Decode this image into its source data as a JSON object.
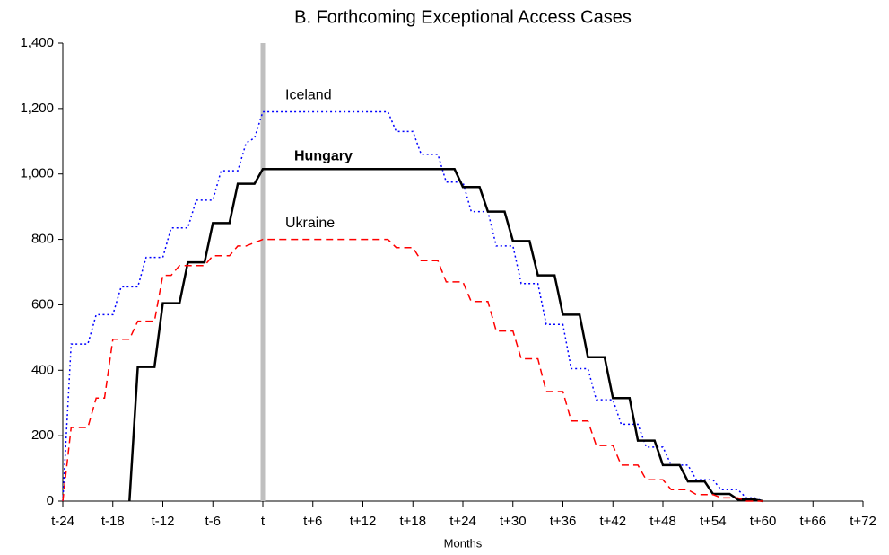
{
  "chart_data": {
    "type": "line",
    "title": "B. Forthcoming Exceptional Access Cases",
    "x_label": "Months",
    "x": [
      -24,
      -23,
      -22,
      -21,
      -20,
      -19,
      -18,
      -17,
      -16,
      -15,
      -14,
      -13,
      -12,
      -11,
      -10,
      -9,
      -8,
      -7,
      -6,
      -5,
      -4,
      -3,
      -2,
      -1,
      0,
      1,
      2,
      3,
      4,
      5,
      6,
      7,
      8,
      9,
      10,
      11,
      12,
      13,
      14,
      15,
      16,
      17,
      18,
      19,
      20,
      21,
      22,
      23,
      24,
      25,
      26,
      27,
      28,
      29,
      30,
      31,
      32,
      33,
      34,
      35,
      36,
      37,
      38,
      39,
      40,
      41,
      42,
      43,
      44,
      45,
      46,
      47,
      48,
      49,
      50,
      51,
      52,
      53,
      54,
      55,
      56,
      57,
      58,
      59,
      60
    ],
    "series": [
      {
        "name": "Iceland",
        "color": "#0000ff",
        "dash": "2,3",
        "width": 1.5,
        "bold": false,
        "values": [
          0,
          480,
          480,
          480,
          570,
          570,
          570,
          655,
          655,
          655,
          745,
          745,
          745,
          835,
          835,
          835,
          920,
          920,
          920,
          1010,
          1010,
          1010,
          1095,
          1110,
          1190,
          1190,
          1190,
          1190,
          1190,
          1190,
          1190,
          1190,
          1190,
          1190,
          1190,
          1190,
          1190,
          1190,
          1190,
          1190,
          1130,
          1130,
          1130,
          1060,
          1060,
          1060,
          975,
          975,
          975,
          885,
          885,
          885,
          780,
          780,
          780,
          665,
          665,
          665,
          540,
          540,
          540,
          405,
          405,
          405,
          310,
          310,
          310,
          235,
          235,
          235,
          165,
          165,
          165,
          110,
          110,
          110,
          65,
          65,
          65,
          35,
          35,
          35,
          10,
          10,
          0
        ]
      },
      {
        "name": "Hungary",
        "color": "#000000",
        "dash": "none",
        "width": 2.5,
        "bold": true,
        "values": [
          null,
          null,
          null,
          null,
          null,
          null,
          null,
          null,
          0,
          410,
          410,
          410,
          605,
          605,
          605,
          730,
          730,
          730,
          850,
          850,
          850,
          970,
          970,
          970,
          1015,
          1015,
          1015,
          1015,
          1015,
          1015,
          1015,
          1015,
          1015,
          1015,
          1015,
          1015,
          1015,
          1015,
          1015,
          1015,
          1015,
          1015,
          1015,
          1015,
          1015,
          1015,
          1015,
          1015,
          960,
          960,
          960,
          885,
          885,
          885,
          795,
          795,
          795,
          690,
          690,
          690,
          570,
          570,
          570,
          440,
          440,
          440,
          315,
          315,
          315,
          185,
          185,
          185,
          110,
          110,
          110,
          60,
          60,
          60,
          22,
          22,
          22,
          5,
          5,
          5,
          0
        ]
      },
      {
        "name": "Ukraine",
        "color": "#ff0000",
        "dash": "8,5",
        "width": 1.5,
        "bold": false,
        "values": [
          0,
          225,
          225,
          225,
          315,
          315,
          495,
          495,
          495,
          550,
          550,
          550,
          690,
          690,
          720,
          720,
          720,
          720,
          750,
          750,
          750,
          780,
          780,
          790,
          800,
          800,
          800,
          800,
          800,
          800,
          800,
          800,
          800,
          800,
          800,
          800,
          800,
          800,
          800,
          800,
          775,
          775,
          775,
          735,
          735,
          735,
          670,
          670,
          670,
          610,
          610,
          610,
          520,
          520,
          520,
          435,
          435,
          435,
          335,
          335,
          335,
          245,
          245,
          245,
          170,
          170,
          170,
          110,
          110,
          110,
          65,
          65,
          65,
          35,
          35,
          35,
          20,
          20,
          20,
          10,
          10,
          10,
          0,
          0,
          0
        ]
      }
    ],
    "xlim": [
      -24,
      72
    ],
    "xticks": [
      {
        "value": -24,
        "label": "t-24"
      },
      {
        "value": -18,
        "label": "t-18"
      },
      {
        "value": -12,
        "label": "t-12"
      },
      {
        "value": -6,
        "label": "t-6"
      },
      {
        "value": 0,
        "label": "t"
      },
      {
        "value": 6,
        "label": "t+6"
      },
      {
        "value": 12,
        "label": "t+12"
      },
      {
        "value": 18,
        "label": "t+18"
      },
      {
        "value": 24,
        "label": "t+24"
      },
      {
        "value": 30,
        "label": "t+30"
      },
      {
        "value": 36,
        "label": "t+36"
      },
      {
        "value": 42,
        "label": "t+42"
      },
      {
        "value": 48,
        "label": "t+48"
      },
      {
        "value": 54,
        "label": "t+54"
      },
      {
        "value": 60,
        "label": "t+60"
      },
      {
        "value": 66,
        "label": "t+66"
      },
      {
        "value": 72,
        "label": "t+72"
      }
    ],
    "ylim": [
      0,
      1400
    ],
    "yticks": [
      0,
      200,
      400,
      600,
      800,
      {
        "value": 1000,
        "label": "1,000"
      },
      {
        "value": 1200,
        "label": "1,200"
      },
      {
        "value": 1400,
        "label": "1,400"
      }
    ],
    "vline": 0,
    "vline_color": "#bfbfbf"
  }
}
